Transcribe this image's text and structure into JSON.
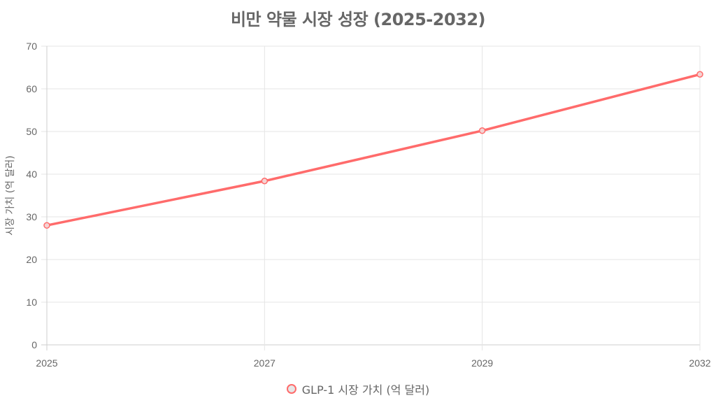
{
  "chart_data": {
    "type": "line",
    "title": "비만 약물 시장 성장 (2025-2032)",
    "xlabel": "",
    "ylabel": "시장 가치 (억 달러)",
    "categories": [
      "2025",
      "2027",
      "2029",
      "2032"
    ],
    "series": [
      {
        "name": "GLP-1 시장 가치 (억 달러)",
        "values": [
          28.0,
          38.4,
          50.2,
          63.4
        ],
        "color": "#ff6b6b"
      }
    ],
    "ylim": [
      0,
      70
    ],
    "yticks": [
      0,
      10,
      20,
      30,
      40,
      50,
      60,
      70
    ],
    "grid": true,
    "legend_position": "bottom"
  },
  "colors": {
    "line": "#ff6b6b",
    "grid": "#e5e5e5",
    "text": "#666666"
  }
}
